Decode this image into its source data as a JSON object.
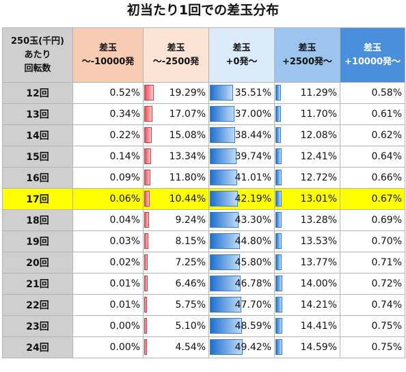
{
  "title": "初当たり1回での差玉分布",
  "row_header": [
    "250玉(千円)",
    "あたり",
    "回転数"
  ],
  "columns": [
    {
      "line1": "差玉",
      "line2": "～-10000発",
      "bg": "#f7ccb2",
      "bar": "none"
    },
    {
      "line1": "差玉",
      "line2": "～-2500発",
      "bg": "#fbe3d5",
      "bar": "red"
    },
    {
      "line1": "差玉",
      "line2": "+0発～",
      "bg": "#dcebf9",
      "bar": "blue"
    },
    {
      "line1": "差玉",
      "line2": "+2500発～",
      "bg": "#9cc4ee",
      "bar": "blue"
    },
    {
      "line1": "差玉",
      "line2": "+10000発～",
      "bg": "#4a8fdc",
      "bar": "none"
    }
  ],
  "highlight_label": "17回",
  "colors": {
    "highlight": "#ffff00",
    "label_bg": "#cfcfcf"
  },
  "rows": [
    {
      "label": "12回",
      "values": [
        "0.52%",
        "19.29%",
        "35.51%",
        "11.29%",
        "0.58%"
      ]
    },
    {
      "label": "13回",
      "values": [
        "0.34%",
        "17.07%",
        "37.00%",
        "11.70%",
        "0.61%"
      ]
    },
    {
      "label": "14回",
      "values": [
        "0.22%",
        "15.08%",
        "38.44%",
        "12.08%",
        "0.62%"
      ]
    },
    {
      "label": "15回",
      "values": [
        "0.14%",
        "13.34%",
        "39.74%",
        "12.41%",
        "0.64%"
      ]
    },
    {
      "label": "16回",
      "values": [
        "0.09%",
        "11.80%",
        "41.01%",
        "12.72%",
        "0.66%"
      ]
    },
    {
      "label": "17回",
      "values": [
        "0.06%",
        "10.44%",
        "42.19%",
        "13.01%",
        "0.67%"
      ]
    },
    {
      "label": "18回",
      "values": [
        "0.04%",
        "9.24%",
        "43.30%",
        "13.28%",
        "0.69%"
      ]
    },
    {
      "label": "19回",
      "values": [
        "0.03%",
        "8.15%",
        "44.80%",
        "13.53%",
        "0.70%"
      ]
    },
    {
      "label": "20回",
      "values": [
        "0.02%",
        "7.25%",
        "45.80%",
        "13.77%",
        "0.71%"
      ]
    },
    {
      "label": "21回",
      "values": [
        "0.01%",
        "6.46%",
        "46.78%",
        "14.00%",
        "0.72%"
      ]
    },
    {
      "label": "22回",
      "values": [
        "0.01%",
        "5.75%",
        "47.70%",
        "14.21%",
        "0.74%"
      ]
    },
    {
      "label": "23回",
      "values": [
        "0.00%",
        "5.10%",
        "48.59%",
        "14.41%",
        "0.75%"
      ]
    },
    {
      "label": "24回",
      "values": [
        "0.00%",
        "4.54%",
        "49.42%",
        "14.59%",
        "0.75%"
      ]
    }
  ]
}
